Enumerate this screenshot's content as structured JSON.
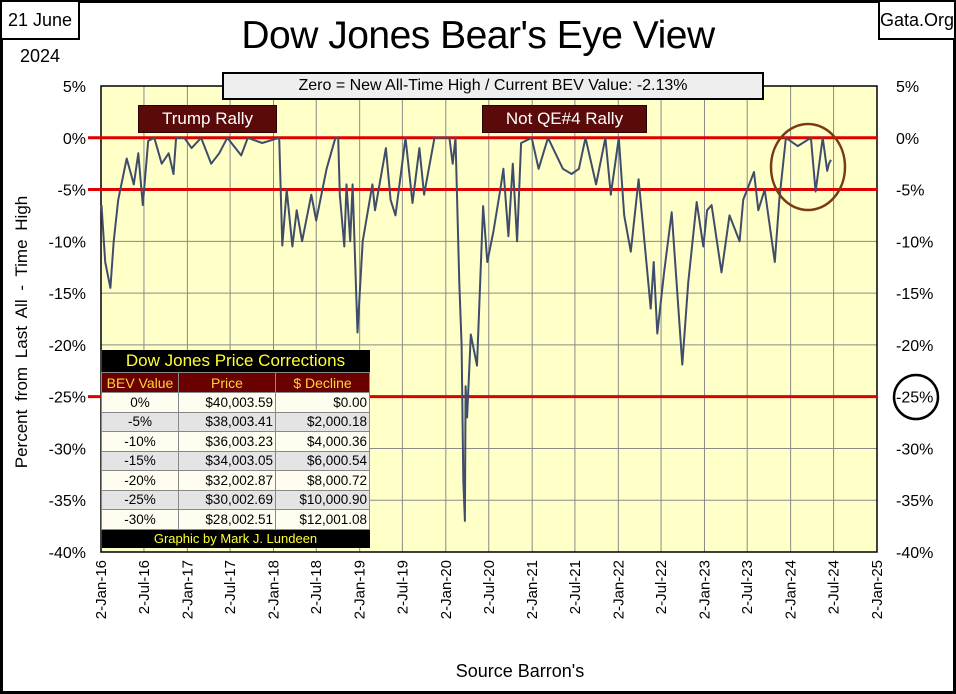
{
  "header": {
    "date": "21 June 2024",
    "site": "Gata.Org",
    "title": "Dow Jones Bear's Eye View",
    "subtitle": "Zero = New All-Time High / Current BEV Value:  -2.13%"
  },
  "annotations": {
    "trump_rally": "Trump Rally",
    "qe4_rally": "Not QE#4 Rally",
    "circled_label": "-25%"
  },
  "table": {
    "title": "Dow Jones Price Corrections",
    "headers": [
      "BEV Value",
      "Price",
      "$ Decline"
    ],
    "rows": [
      [
        "0%",
        "$40,003.59",
        "$0.00"
      ],
      [
        "-5%",
        "$38,003.41",
        "$2,000.18"
      ],
      [
        "-10%",
        "$36,003.23",
        "$4,000.36"
      ],
      [
        "-15%",
        "$34,003.05",
        "$6,000.54"
      ],
      [
        "-20%",
        "$32,002.87",
        "$8,000.72"
      ],
      [
        "-25%",
        "$30,002.69",
        "$10,000.90"
      ],
      [
        "-30%",
        "$28,002.51",
        "$12,001.08"
      ]
    ],
    "footer": "Graphic by Mark J. Lundeen"
  },
  "colors": {
    "plot_bg": "#ffffc8",
    "line": "#3f4d6b",
    "ref_lines": "#e00000",
    "ellipse": "#7a3a12",
    "grid": "#8a8a8a"
  },
  "chart_data": {
    "type": "line",
    "title": "Dow Jones Bear's Eye View",
    "xlabel": "Source Barron's",
    "ylabel": "Percent  from  Last  All - Time  High",
    "ylim": [
      -40,
      5
    ],
    "xlim": [
      "2016-01-02",
      "2025-01-02"
    ],
    "grid": true,
    "y_ticks": [
      "5%",
      "0%",
      "-5%",
      "-10%",
      "-15%",
      "-20%",
      "-25%",
      "-30%",
      "-35%",
      "-40%"
    ],
    "x_ticks": [
      "2-Jan-16",
      "2-Jul-16",
      "2-Jan-17",
      "2-Jul-17",
      "2-Jan-18",
      "2-Jul-18",
      "2-Jan-19",
      "2-Jul-19",
      "2-Jan-20",
      "2-Jul-20",
      "2-Jan-21",
      "2-Jul-21",
      "2-Jan-22",
      "2-Jul-22",
      "2-Jan-23",
      "2-Jul-23",
      "2-Jan-24",
      "2-Jul-24",
      "2-Jan-25"
    ],
    "x_tick_dates": [
      "2016-01-02",
      "2016-07-02",
      "2017-01-02",
      "2017-07-02",
      "2018-01-02",
      "2018-07-02",
      "2019-01-02",
      "2019-07-02",
      "2020-01-02",
      "2020-07-02",
      "2021-01-02",
      "2021-07-02",
      "2022-01-02",
      "2022-07-02",
      "2023-01-02",
      "2023-07-02",
      "2024-01-02",
      "2024-07-02",
      "2025-01-02"
    ],
    "reference_lines": [
      0,
      -5,
      -25
    ],
    "series": [
      {
        "points": [
          [
            "2016-01-04",
            -6.5
          ],
          [
            "2016-01-20",
            -12
          ],
          [
            "2016-02-11",
            -14.5
          ],
          [
            "2016-02-25",
            -10
          ],
          [
            "2016-03-15",
            -6
          ],
          [
            "2016-04-20",
            -2
          ],
          [
            "2016-05-20",
            -4.5
          ],
          [
            "2016-06-08",
            -1.5
          ],
          [
            "2016-06-27",
            -6.5
          ],
          [
            "2016-07-20",
            -0.3
          ],
          [
            "2016-08-15",
            0
          ],
          [
            "2016-09-15",
            -2.5
          ],
          [
            "2016-10-15",
            -1.5
          ],
          [
            "2016-11-04",
            -3.5
          ],
          [
            "2016-11-15",
            0
          ],
          [
            "2016-12-20",
            0
          ],
          [
            "2017-01-20",
            -1
          ],
          [
            "2017-03-01",
            0
          ],
          [
            "2017-04-13",
            -2.5
          ],
          [
            "2017-05-17",
            -1.5
          ],
          [
            "2017-06-20",
            0
          ],
          [
            "2017-08-18",
            -1.7
          ],
          [
            "2017-09-15",
            0
          ],
          [
            "2017-11-15",
            -0.5
          ],
          [
            "2018-01-26",
            0
          ],
          [
            "2018-02-08",
            -10.4
          ],
          [
            "2018-02-27",
            -5
          ],
          [
            "2018-03-23",
            -10.5
          ],
          [
            "2018-04-10",
            -7
          ],
          [
            "2018-05-03",
            -10
          ],
          [
            "2018-06-11",
            -5.5
          ],
          [
            "2018-07-02",
            -8
          ],
          [
            "2018-08-15",
            -3
          ],
          [
            "2018-09-21",
            0
          ],
          [
            "2018-10-03",
            0
          ],
          [
            "2018-10-10",
            -5.5
          ],
          [
            "2018-10-29",
            -10.5
          ],
          [
            "2018-11-07",
            -4.5
          ],
          [
            "2018-11-23",
            -10
          ],
          [
            "2018-12-03",
            -4.5
          ],
          [
            "2018-12-24",
            -18.8
          ],
          [
            "2019-01-15",
            -10
          ],
          [
            "2019-02-25",
            -4.5
          ],
          [
            "2019-03-08",
            -7
          ],
          [
            "2019-04-23",
            -1
          ],
          [
            "2019-05-13",
            -6
          ],
          [
            "2019-06-03",
            -7.5
          ],
          [
            "2019-07-15",
            0
          ],
          [
            "2019-08-14",
            -6.3
          ],
          [
            "2019-09-12",
            -1
          ],
          [
            "2019-10-02",
            -5.5
          ],
          [
            "2019-11-15",
            0
          ],
          [
            "2020-01-17",
            0
          ],
          [
            "2020-01-31",
            -2.5
          ],
          [
            "2020-02-12",
            0
          ],
          [
            "2020-02-28",
            -14
          ],
          [
            "2020-03-09",
            -20
          ],
          [
            "2020-03-16",
            -33
          ],
          [
            "2020-03-23",
            -37
          ],
          [
            "2020-03-26",
            -24
          ],
          [
            "2020-04-01",
            -27
          ],
          [
            "2020-04-17",
            -19
          ],
          [
            "2020-05-13",
            -22
          ],
          [
            "2020-06-08",
            -6.6
          ],
          [
            "2020-06-26",
            -12
          ],
          [
            "2020-07-22",
            -9
          ],
          [
            "2020-08-20",
            -5
          ],
          [
            "2020-09-02",
            -3
          ],
          [
            "2020-09-23",
            -9.5
          ],
          [
            "2020-10-12",
            -2.5
          ],
          [
            "2020-10-30",
            -10
          ],
          [
            "2020-11-16",
            -0.5
          ],
          [
            "2020-12-31",
            0
          ],
          [
            "2021-01-29",
            -3
          ],
          [
            "2021-03-10",
            0
          ],
          [
            "2021-05-12",
            -3
          ],
          [
            "2021-06-18",
            -3.5
          ],
          [
            "2021-07-19",
            -3
          ],
          [
            "2021-08-16",
            0
          ],
          [
            "2021-09-30",
            -4.5
          ],
          [
            "2021-11-08",
            0
          ],
          [
            "2021-12-01",
            -5.5
          ],
          [
            "2022-01-04",
            0
          ],
          [
            "2022-01-27",
            -7.5
          ],
          [
            "2022-02-24",
            -11
          ],
          [
            "2022-03-29",
            -4
          ],
          [
            "2022-04-29",
            -11.5
          ],
          [
            "2022-05-19",
            -16.5
          ],
          [
            "2022-06-01",
            -12
          ],
          [
            "2022-06-16",
            -18.9
          ],
          [
            "2022-07-15",
            -13
          ],
          [
            "2022-08-16",
            -7.2
          ],
          [
            "2022-09-06",
            -14
          ],
          [
            "2022-09-30",
            -21.9
          ],
          [
            "2022-10-25",
            -14
          ],
          [
            "2022-11-30",
            -6.2
          ],
          [
            "2022-12-28",
            -10.5
          ],
          [
            "2023-01-13",
            -7
          ],
          [
            "2023-02-01",
            -6.5
          ],
          [
            "2023-03-15",
            -13
          ],
          [
            "2023-04-18",
            -7.5
          ],
          [
            "2023-05-31",
            -10
          ],
          [
            "2023-06-15",
            -6
          ],
          [
            "2023-07-31",
            -3.3
          ],
          [
            "2023-08-18",
            -7
          ],
          [
            "2023-09-14",
            -5
          ],
          [
            "2023-10-27",
            -12
          ],
          [
            "2023-11-15",
            -6
          ],
          [
            "2023-12-13",
            0
          ],
          [
            "2024-02-01",
            -0.8
          ],
          [
            "2024-03-28",
            0
          ],
          [
            "2024-04-17",
            -5.2
          ],
          [
            "2024-05-17",
            0
          ],
          [
            "2024-06-05",
            -3.2
          ],
          [
            "2024-06-12",
            -2.5
          ],
          [
            "2024-06-21",
            -2.13
          ]
        ]
      }
    ]
  }
}
